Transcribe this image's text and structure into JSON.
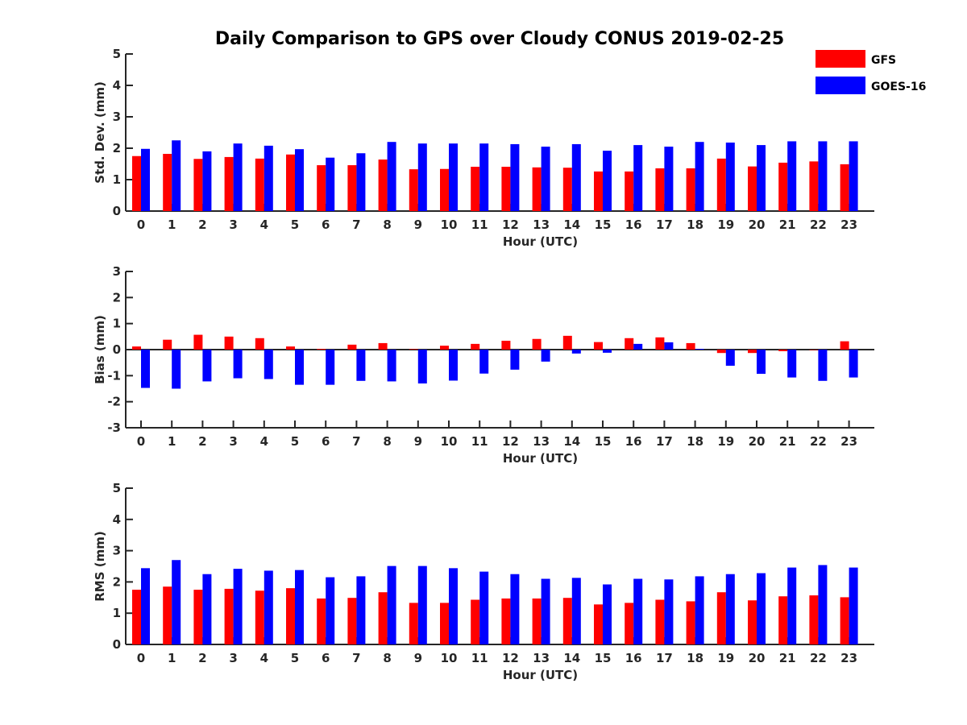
{
  "figure": {
    "title": "Daily Comparison to GPS over Cloudy CONUS 2019-02-25"
  },
  "legend": {
    "placement": "top-right",
    "entries": [
      {
        "label": "GFS",
        "color": "#ff0000"
      },
      {
        "label": "GOES-16",
        "color": "#0000ff"
      }
    ]
  },
  "chart_data": [
    {
      "type": "bar",
      "xlabel": "Hour (UTC)",
      "ylabel": "Std. Dev. (mm)",
      "ylim": [
        0,
        5
      ],
      "yticks": [
        0,
        1,
        2,
        3,
        4,
        5
      ],
      "categories": [
        "0",
        "1",
        "2",
        "3",
        "4",
        "5",
        "6",
        "7",
        "8",
        "9",
        "10",
        "11",
        "12",
        "13",
        "14",
        "15",
        "16",
        "17",
        "18",
        "19",
        "20",
        "21",
        "22",
        "23"
      ],
      "series": [
        {
          "name": "GFS",
          "color": "#ff0000",
          "values": [
            1.75,
            1.82,
            1.66,
            1.72,
            1.67,
            1.8,
            1.46,
            1.46,
            1.64,
            1.33,
            1.34,
            1.41,
            1.41,
            1.39,
            1.38,
            1.26,
            1.26,
            1.36,
            1.36,
            1.67,
            1.42,
            1.54,
            1.58,
            1.49
          ]
        },
        {
          "name": "GOES-16",
          "color": "#0000ff",
          "values": [
            1.98,
            2.25,
            1.9,
            2.15,
            2.08,
            1.97,
            1.7,
            1.84,
            2.2,
            2.15,
            2.15,
            2.15,
            2.13,
            2.05,
            2.13,
            1.92,
            2.1,
            2.05,
            2.2,
            2.18,
            2.1,
            2.22,
            2.22,
            2.22
          ]
        }
      ]
    },
    {
      "type": "bar",
      "xlabel": "Hour (UTC)",
      "ylabel": "Bias (mm)",
      "ylim": [
        -3,
        3
      ],
      "yticks": [
        -3,
        -2,
        -1,
        0,
        1,
        2,
        3
      ],
      "zero_line": true,
      "categories": [
        "0",
        "1",
        "2",
        "3",
        "4",
        "5",
        "6",
        "7",
        "8",
        "9",
        "10",
        "11",
        "12",
        "13",
        "14",
        "15",
        "16",
        "17",
        "18",
        "19",
        "20",
        "21",
        "22",
        "23"
      ],
      "series": [
        {
          "name": "GFS",
          "color": "#ff0000",
          "values": [
            0.12,
            0.38,
            0.57,
            0.5,
            0.44,
            0.12,
            0.03,
            0.19,
            0.25,
            0.02,
            0.15,
            0.22,
            0.34,
            0.41,
            0.53,
            0.29,
            0.44,
            0.47,
            0.25,
            -0.13,
            -0.13,
            -0.06,
            0.0,
            0.32
          ]
        },
        {
          "name": "GOES-16",
          "color": "#0000ff",
          "values": [
            -1.47,
            -1.5,
            -1.22,
            -1.1,
            -1.13,
            -1.35,
            -1.35,
            -1.2,
            -1.22,
            -1.3,
            -1.19,
            -0.92,
            -0.77,
            -0.46,
            -0.15,
            -0.12,
            0.22,
            0.28,
            0.03,
            -0.62,
            -0.93,
            -1.07,
            -1.2,
            -1.07
          ]
        }
      ]
    },
    {
      "type": "bar",
      "xlabel": "Hour (UTC)",
      "ylabel": "RMS (mm)",
      "ylim": [
        0,
        5
      ],
      "yticks": [
        0,
        1,
        2,
        3,
        4,
        5
      ],
      "categories": [
        "0",
        "1",
        "2",
        "3",
        "4",
        "5",
        "6",
        "7",
        "8",
        "9",
        "10",
        "11",
        "12",
        "13",
        "14",
        "15",
        "16",
        "17",
        "18",
        "19",
        "20",
        "21",
        "22",
        "23"
      ],
      "series": [
        {
          "name": "GFS",
          "color": "#ff0000",
          "values": [
            1.75,
            1.85,
            1.75,
            1.78,
            1.72,
            1.8,
            1.47,
            1.49,
            1.67,
            1.33,
            1.33,
            1.43,
            1.47,
            1.47,
            1.49,
            1.28,
            1.33,
            1.43,
            1.38,
            1.67,
            1.41,
            1.54,
            1.57,
            1.51
          ]
        },
        {
          "name": "GOES-16",
          "color": "#0000ff",
          "values": [
            2.44,
            2.7,
            2.25,
            2.42,
            2.36,
            2.38,
            2.15,
            2.18,
            2.51,
            2.51,
            2.44,
            2.33,
            2.25,
            2.1,
            2.13,
            1.92,
            2.1,
            2.08,
            2.18,
            2.25,
            2.28,
            2.46,
            2.54,
            2.46
          ]
        }
      ]
    }
  ]
}
